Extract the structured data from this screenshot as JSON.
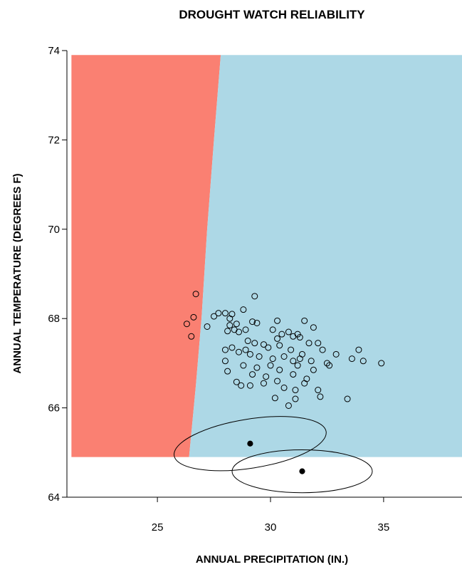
{
  "chart_data": {
    "type": "scatter",
    "title": "DROUGHT WATCH RELIABILITY",
    "xlabel": "ANNUAL PRECIPITATION (IN.)",
    "ylabel": "ANNUAL TEMPERATURE (DEGREES F)",
    "xlim": [
      21,
      39
    ],
    "ylim": [
      64,
      74
    ],
    "xticks": [
      25,
      30,
      35
    ],
    "yticks": [
      64,
      66,
      68,
      70,
      72,
      74
    ],
    "grid": false,
    "colors": {
      "drought_region": "#fa8072",
      "no_drought_region": "#add8e6",
      "points": "#000000"
    },
    "regions": [
      {
        "color": "drought_region",
        "polygon": [
          [
            21.2,
            73.9
          ],
          [
            27.8,
            73.9
          ],
          [
            27.5,
            72.0
          ],
          [
            27.2,
            70.0
          ],
          [
            26.95,
            68.0
          ],
          [
            26.7,
            66.5
          ],
          [
            26.4,
            64.9
          ],
          [
            21.2,
            64.9
          ]
        ]
      },
      {
        "color": "no_drought_region",
        "polygon": [
          [
            27.8,
            73.9
          ],
          [
            38.7,
            73.9
          ],
          [
            38.7,
            64.9
          ],
          [
            26.4,
            64.9
          ],
          [
            26.7,
            66.5
          ],
          [
            26.95,
            68.0
          ],
          [
            27.2,
            70.0
          ],
          [
            27.5,
            72.0
          ]
        ]
      }
    ],
    "points": [
      [
        26.7,
        68.55
      ],
      [
        29.3,
        68.5
      ],
      [
        26.6,
        68.03
      ],
      [
        26.3,
        67.88
      ],
      [
        27.2,
        67.82
      ],
      [
        26.5,
        67.6
      ],
      [
        27.5,
        68.05
      ],
      [
        27.7,
        68.12
      ],
      [
        28.0,
        68.12
      ],
      [
        28.2,
        68.0
      ],
      [
        28.3,
        68.1
      ],
      [
        28.8,
        68.2
      ],
      [
        29.2,
        67.93
      ],
      [
        29.4,
        67.9
      ],
      [
        30.3,
        67.95
      ],
      [
        31.5,
        67.95
      ],
      [
        31.9,
        67.8
      ],
      [
        28.2,
        67.85
      ],
      [
        28.4,
        67.75
      ],
      [
        28.6,
        67.7
      ],
      [
        28.5,
        67.88
      ],
      [
        28.1,
        67.72
      ],
      [
        28.9,
        67.75
      ],
      [
        30.1,
        67.75
      ],
      [
        30.5,
        67.65
      ],
      [
        30.8,
        67.7
      ],
      [
        31.0,
        67.6
      ],
      [
        31.2,
        67.65
      ],
      [
        31.3,
        67.58
      ],
      [
        30.3,
        67.55
      ],
      [
        29.0,
        67.5
      ],
      [
        29.3,
        67.45
      ],
      [
        29.7,
        67.42
      ],
      [
        29.9,
        67.35
      ],
      [
        30.4,
        67.4
      ],
      [
        31.7,
        67.45
      ],
      [
        32.1,
        67.45
      ],
      [
        28.3,
        67.35
      ],
      [
        28.6,
        67.25
      ],
      [
        28.9,
        67.3
      ],
      [
        29.1,
        67.2
      ],
      [
        29.5,
        67.15
      ],
      [
        30.1,
        67.1
      ],
      [
        30.6,
        67.15
      ],
      [
        31.0,
        67.05
      ],
      [
        31.3,
        67.1
      ],
      [
        31.8,
        67.05
      ],
      [
        32.3,
        67.3
      ],
      [
        32.9,
        67.2
      ],
      [
        33.9,
        67.3
      ],
      [
        34.1,
        67.05
      ],
      [
        33.6,
        67.1
      ],
      [
        34.9,
        67.0
      ],
      [
        32.6,
        66.95
      ],
      [
        32.5,
        67.0
      ],
      [
        28.0,
        67.05
      ],
      [
        28.8,
        66.95
      ],
      [
        29.4,
        66.9
      ],
      [
        30.0,
        66.95
      ],
      [
        30.4,
        66.85
      ],
      [
        31.2,
        66.95
      ],
      [
        31.9,
        66.85
      ],
      [
        28.1,
        66.82
      ],
      [
        29.2,
        66.75
      ],
      [
        29.8,
        66.7
      ],
      [
        30.3,
        66.6
      ],
      [
        31.0,
        66.75
      ],
      [
        31.6,
        66.65
      ],
      [
        28.5,
        66.58
      ],
      [
        29.1,
        66.5
      ],
      [
        29.7,
        66.55
      ],
      [
        30.6,
        66.45
      ],
      [
        31.1,
        66.4
      ],
      [
        31.5,
        66.55
      ],
      [
        32.1,
        66.4
      ],
      [
        30.2,
        66.22
      ],
      [
        30.8,
        66.05
      ],
      [
        31.1,
        66.2
      ],
      [
        32.2,
        66.25
      ],
      [
        33.4,
        66.2
      ],
      [
        28.7,
        66.5
      ],
      [
        30.9,
        67.3
      ],
      [
        31.4,
        67.2
      ],
      [
        28.0,
        67.3
      ]
    ],
    "ellipses": [
      {
        "center": [
          29.1,
          65.2
        ],
        "rx": 3.4,
        "ry": 0.55,
        "angle_deg": 9
      },
      {
        "center": [
          31.4,
          64.58
        ],
        "rx": 3.1,
        "ry": 0.48,
        "angle_deg": 0
      }
    ],
    "filled_points": [
      [
        29.1,
        65.2
      ],
      [
        31.4,
        64.58
      ]
    ]
  }
}
